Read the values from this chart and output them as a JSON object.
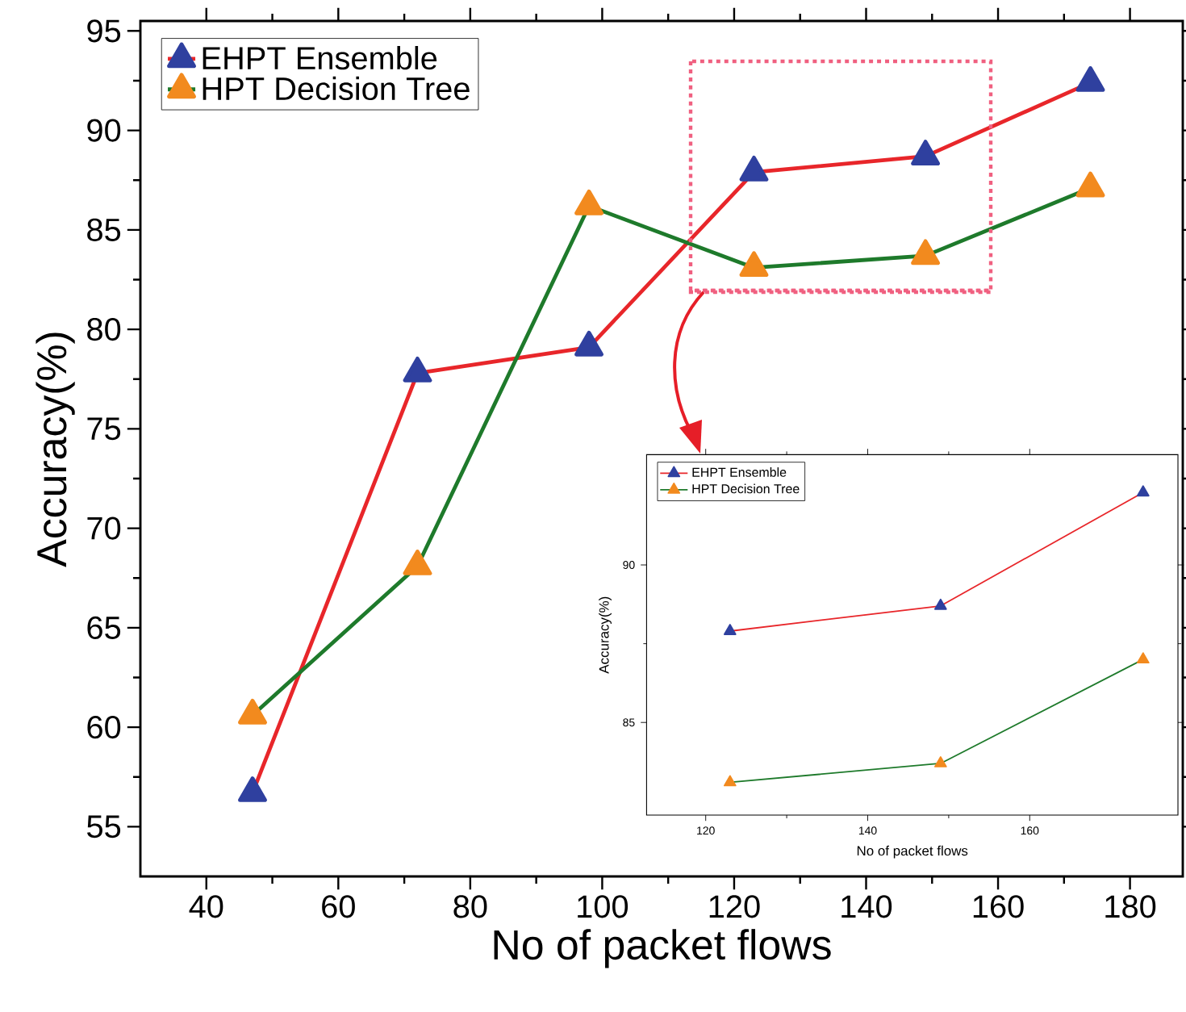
{
  "chart_data": [
    {
      "type": "line",
      "xlabel": "No of packet flows",
      "ylabel": "Accuracy(%)",
      "x": [
        47,
        72,
        98,
        123,
        149,
        174
      ],
      "series": [
        {
          "name": "EHPT Ensemble",
          "color": "#e8262a",
          "values": [
            56.7,
            77.8,
            79.1,
            87.9,
            88.7,
            92.4
          ]
        },
        {
          "name": "HPT Decision Tree",
          "color": "#1e7a2b",
          "values": [
            60.6,
            68.1,
            86.2,
            83.1,
            83.7,
            87.1
          ]
        }
      ],
      "xlim": [
        30,
        188
      ],
      "ylim": [
        52.5,
        95.5
      ],
      "xticks": [
        40,
        60,
        80,
        100,
        120,
        140,
        160,
        180
      ],
      "yticks": [
        55,
        60,
        65,
        70,
        75,
        80,
        85,
        90,
        95
      ],
      "legend": "top left",
      "marker": "triangle",
      "line_style": "solid"
    },
    {
      "type": "line",
      "xlabel": "No of packet flows",
      "ylabel": "Accuracy(%)",
      "x": [
        123,
        149,
        174
      ],
      "series": [
        {
          "name": "EHPT Ensemble",
          "color": "#e8262a",
          "values": [
            87.9,
            88.7,
            92.3
          ]
        },
        {
          "name": "HPT Decision Tree",
          "color": "#1e7a2b",
          "values": [
            83.1,
            83.7,
            87.0
          ]
        }
      ],
      "xlim": [
        112.7,
        178.3
      ],
      "ylim": [
        82.06,
        93.5
      ],
      "xticks": [
        120,
        140,
        160
      ],
      "yticks": [
        85,
        90
      ],
      "legend": "top left",
      "marker": "triangle",
      "line_style": "solid"
    }
  ]
}
